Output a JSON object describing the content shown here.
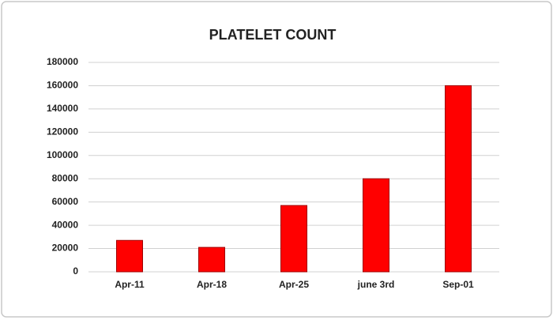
{
  "chart_data": {
    "type": "bar",
    "title": "PLATELET COUNT",
    "categories": [
      "Apr-11",
      "Apr-18",
      "Apr-25",
      "june 3rd",
      "Sep-01"
    ],
    "values": [
      27000,
      21000,
      57000,
      80000,
      160000
    ],
    "color": "#ff0000",
    "ylim": [
      0,
      180000
    ],
    "yticks": [
      0,
      20000,
      40000,
      60000,
      80000,
      100000,
      120000,
      140000,
      160000,
      180000
    ],
    "grid": true
  }
}
